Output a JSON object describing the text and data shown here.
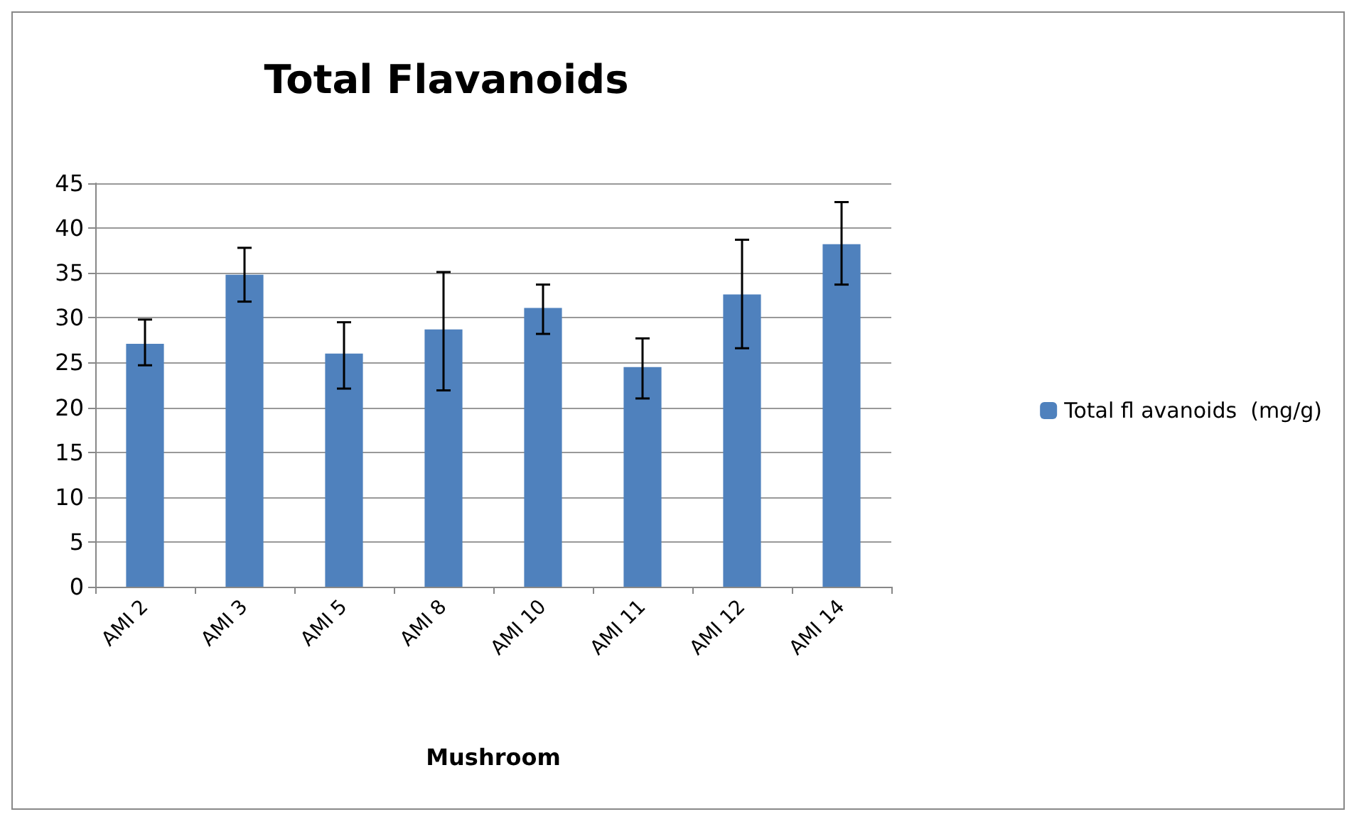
{
  "chart_data": {
    "type": "bar",
    "title": "Total Flavanoids",
    "xlabel": "Mushroom",
    "categories": [
      "AMI 2",
      "AMI 3",
      "AMI 5",
      "AMI 8",
      "AMI 10",
      "AMI 11",
      "AMI 12",
      "AMI 14"
    ],
    "series": [
      {
        "name": "Total fl avanoids  (mg/g)",
        "color": "#4f81bd",
        "values": [
          27.1,
          34.8,
          26.0,
          28.7,
          31.1,
          24.5,
          32.6,
          38.2
        ],
        "errors": [
          [
            24.7,
            29.8
          ],
          [
            31.8,
            37.8
          ],
          [
            22.1,
            29.5
          ],
          [
            21.9,
            35.1
          ],
          [
            28.2,
            33.7
          ],
          [
            21.0,
            27.7
          ],
          [
            26.6,
            38.7
          ],
          [
            33.7,
            42.9
          ]
        ]
      }
    ],
    "ylim": [
      0,
      45
    ],
    "yticks": [
      0,
      5,
      10,
      15,
      20,
      25,
      30,
      35,
      40,
      45
    ],
    "grid": "y",
    "legend": "right"
  }
}
